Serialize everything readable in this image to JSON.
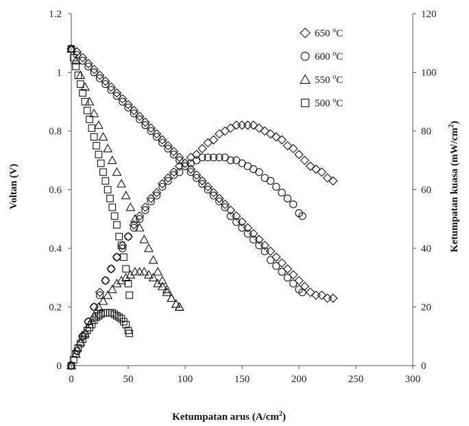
{
  "chart_data": {
    "type": "scatter",
    "xlabel_main": "Ketumpatan arus (A/cm",
    "xlabel_sup": "2",
    "xlabel_end": ")",
    "ylabel": "Voltan (V)",
    "y2label_main": "Ketumpatan kuasa (mW/cm",
    "y2label_sup": "2",
    "y2label_end": ")",
    "xlim": [
      0,
      300
    ],
    "ylim": [
      0,
      1.2
    ],
    "y2lim": [
      0,
      120
    ],
    "xticks": [
      "0",
      "50",
      "100",
      "150",
      "200",
      "250",
      "300"
    ],
    "yticks": [
      "0",
      "0.2",
      "0.4",
      "0.6",
      "0.8",
      "1",
      "1.2"
    ],
    "y2ticks": [
      "0",
      "20",
      "40",
      "60",
      "80",
      "100",
      "120"
    ],
    "legend_position": "top-right",
    "series": [
      {
        "name": "650",
        "unit_sup": "o",
        "unit": "C",
        "marker": "diamond",
        "voltage": {
          "x": [
            0,
            5,
            10,
            15,
            20,
            25,
            30,
            35,
            40,
            45,
            50,
            55,
            60,
            65,
            70,
            75,
            80,
            85,
            90,
            95,
            100,
            105,
            110,
            115,
            120,
            125,
            130,
            135,
            140,
            145,
            150,
            155,
            160,
            165,
            170,
            175,
            180,
            185,
            190,
            195,
            200,
            205,
            210,
            215,
            220,
            225,
            230
          ],
          "y": [
            1.08,
            1.07,
            1.05,
            1.03,
            1.01,
            0.99,
            0.97,
            0.95,
            0.93,
            0.91,
            0.89,
            0.87,
            0.85,
            0.83,
            0.81,
            0.79,
            0.77,
            0.75,
            0.73,
            0.71,
            0.69,
            0.67,
            0.65,
            0.63,
            0.61,
            0.59,
            0.57,
            0.55,
            0.53,
            0.51,
            0.49,
            0.47,
            0.45,
            0.43,
            0.41,
            0.39,
            0.37,
            0.35,
            0.33,
            0.31,
            0.29,
            0.27,
            0.25,
            0.24,
            0.24,
            0.23,
            0.23
          ]
        },
        "power": {
          "x": [
            0,
            5,
            10,
            15,
            20,
            25,
            30,
            35,
            40,
            45,
            50,
            55,
            60,
            65,
            70,
            75,
            80,
            85,
            90,
            95,
            100,
            105,
            110,
            115,
            120,
            125,
            130,
            135,
            140,
            145,
            150,
            155,
            160,
            165,
            170,
            175,
            180,
            185,
            190,
            195,
            200,
            205,
            210,
            215,
            220,
            225,
            230
          ],
          "y": [
            0,
            5,
            10,
            15,
            20,
            25,
            29,
            33,
            37,
            41,
            44,
            48,
            51,
            54,
            57,
            59,
            62,
            64,
            66,
            68,
            69,
            71,
            72,
            74,
            76,
            77,
            79,
            80,
            81,
            82,
            82,
            82,
            82,
            81,
            80,
            79,
            78,
            77,
            75,
            74,
            72,
            70,
            68,
            67,
            66,
            64,
            63
          ]
        }
      },
      {
        "name": "600",
        "unit_sup": "o",
        "unit": "C",
        "marker": "circle",
        "voltage": {
          "x": [
            0,
            5,
            10,
            15,
            20,
            25,
            30,
            35,
            40,
            45,
            50,
            55,
            60,
            65,
            70,
            75,
            80,
            85,
            90,
            95,
            100,
            105,
            110,
            115,
            120,
            125,
            130,
            135,
            140,
            145,
            150,
            155,
            160,
            165,
            170,
            175,
            180,
            185,
            190,
            195,
            200,
            203
          ],
          "y": [
            1.08,
            1.06,
            1.04,
            1.02,
            1.0,
            0.98,
            0.96,
            0.94,
            0.92,
            0.9,
            0.88,
            0.86,
            0.84,
            0.82,
            0.8,
            0.78,
            0.76,
            0.74,
            0.72,
            0.7,
            0.68,
            0.66,
            0.64,
            0.62,
            0.6,
            0.58,
            0.56,
            0.54,
            0.51,
            0.49,
            0.47,
            0.45,
            0.43,
            0.41,
            0.39,
            0.36,
            0.34,
            0.32,
            0.3,
            0.28,
            0.26,
            0.25
          ]
        },
        "power": {
          "x": [
            0,
            5,
            10,
            15,
            20,
            25,
            30,
            35,
            40,
            45,
            50,
            55,
            60,
            65,
            70,
            75,
            80,
            85,
            90,
            95,
            100,
            105,
            110,
            115,
            120,
            125,
            130,
            135,
            140,
            145,
            150,
            155,
            160,
            165,
            170,
            175,
            180,
            185,
            190,
            195,
            200,
            203
          ],
          "y": [
            0,
            5,
            10,
            15,
            20,
            24,
            29,
            33,
            37,
            40,
            44,
            47,
            50,
            53,
            56,
            58,
            61,
            63,
            65,
            66,
            68,
            69,
            70,
            71,
            71,
            71,
            71,
            71,
            70,
            70,
            69,
            68,
            67,
            66,
            64,
            63,
            61,
            59,
            57,
            55,
            52,
            51
          ]
        }
      },
      {
        "name": "550",
        "unit_sup": "o",
        "unit": "C",
        "marker": "triangle",
        "voltage": {
          "x": [
            0,
            4,
            8,
            12,
            16,
            20,
            24,
            28,
            32,
            36,
            40,
            44,
            48,
            52,
            56,
            60,
            64,
            68,
            72,
            76,
            80,
            84,
            88,
            92,
            95
          ],
          "y": [
            1.08,
            1.04,
            0.99,
            0.95,
            0.9,
            0.86,
            0.82,
            0.78,
            0.74,
            0.7,
            0.66,
            0.62,
            0.58,
            0.54,
            0.5,
            0.47,
            0.43,
            0.4,
            0.36,
            0.32,
            0.29,
            0.26,
            0.23,
            0.21,
            0.2
          ]
        },
        "power": {
          "x": [
            0,
            4,
            8,
            12,
            16,
            20,
            24,
            28,
            32,
            36,
            40,
            44,
            48,
            52,
            56,
            60,
            64,
            68,
            72,
            76,
            80,
            84,
            88,
            92,
            95
          ],
          "y": [
            0,
            4,
            8,
            11,
            14,
            17,
            20,
            22,
            24,
            26,
            28,
            29,
            30,
            31,
            32,
            32,
            32,
            31,
            30,
            28,
            27,
            25,
            23,
            21,
            20
          ]
        }
      },
      {
        "name": "500",
        "unit_sup": "o",
        "unit": "C",
        "marker": "square",
        "voltage": {
          "x": [
            0,
            2,
            4,
            6,
            8,
            10,
            12,
            14,
            16,
            18,
            20,
            22,
            24,
            26,
            28,
            30,
            32,
            34,
            36,
            38,
            40,
            42,
            44,
            46,
            48,
            50,
            51
          ],
          "y": [
            1.08,
            1.05,
            1.02,
            0.99,
            0.96,
            0.93,
            0.9,
            0.87,
            0.84,
            0.81,
            0.78,
            0.75,
            0.72,
            0.69,
            0.66,
            0.63,
            0.6,
            0.57,
            0.54,
            0.51,
            0.48,
            0.44,
            0.41,
            0.37,
            0.33,
            0.28,
            0.24
          ]
        },
        "power": {
          "x": [
            0,
            2,
            4,
            6,
            8,
            10,
            12,
            14,
            16,
            18,
            20,
            22,
            24,
            26,
            28,
            30,
            32,
            34,
            36,
            38,
            40,
            42,
            44,
            46,
            48,
            50,
            51
          ],
          "y": [
            0,
            2,
            4,
            6,
            7.5,
            9,
            10.5,
            12,
            13,
            14,
            15.5,
            16.5,
            17,
            17.5,
            18,
            18,
            18,
            18,
            18,
            17.5,
            17,
            16.5,
            16,
            15,
            14,
            12,
            11
          ]
        }
      }
    ]
  }
}
